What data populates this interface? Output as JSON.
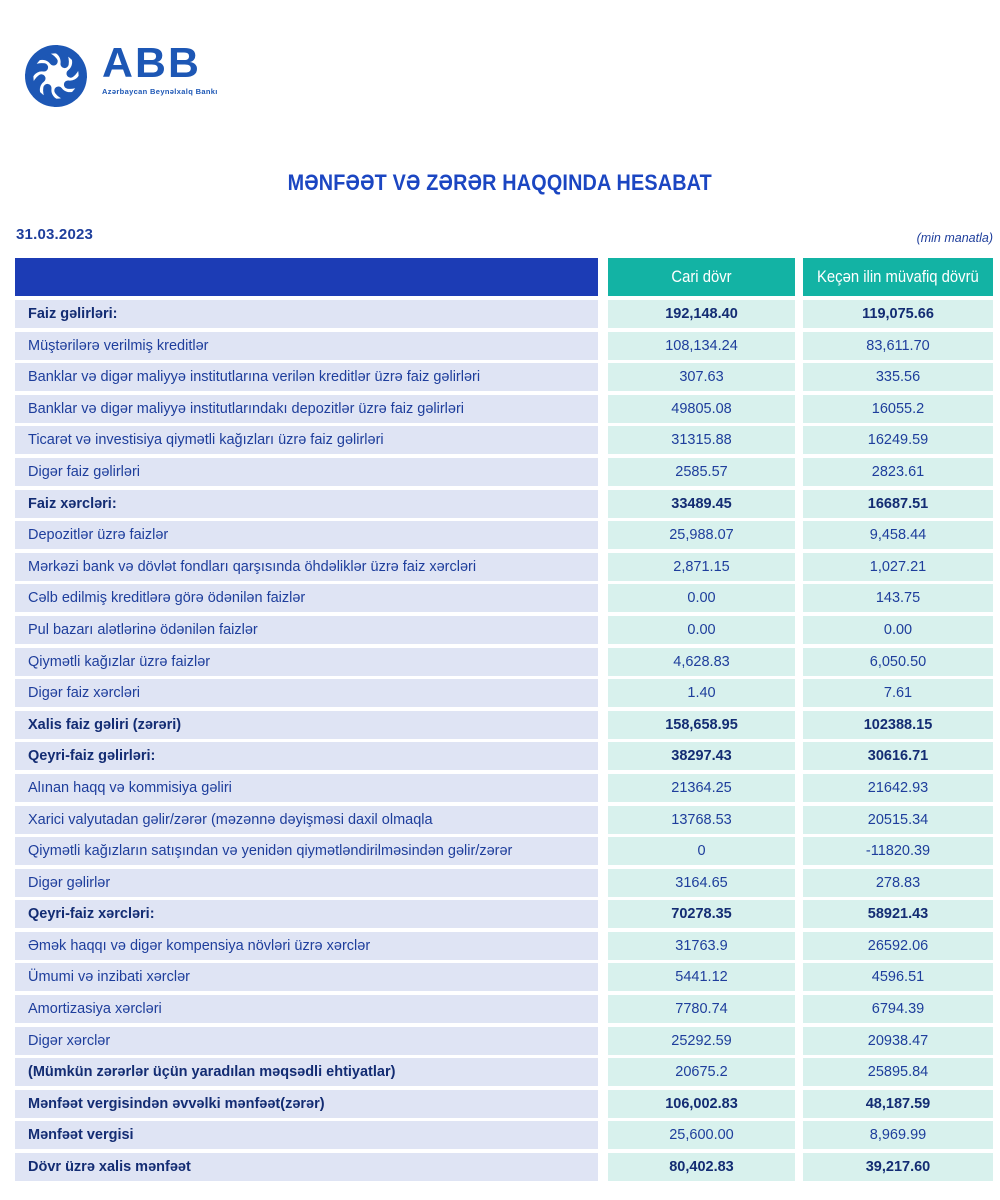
{
  "logo": {
    "brand": "ABB",
    "tagline": "Azərbaycan Beynəlxalq Bankı"
  },
  "title": "MƏNFƏƏT VƏ ZƏRƏR HAQQINDA HESABAT",
  "date": "31.03.2023",
  "unit_note": "(min manatla)",
  "colors": {
    "brand_blue": "#1d57b5",
    "title_blue": "#1b46c2",
    "header_blue": "#1c3cb5",
    "header_teal": "#13b3a4",
    "label_cell_bg": "#dfe4f4",
    "value_cell_bg": "#d8f1ed",
    "text_navy": "#1e3e9c",
    "text_navy_bold": "#132c73"
  },
  "table": {
    "columns": [
      "Cari dövr",
      "Keçən ilin müvafiq dövrü"
    ],
    "rows": [
      {
        "label": "Faiz gəlirləri:",
        "current": "192,148.40",
        "previous": "119,075.66",
        "bold_label": true,
        "bold_values": true
      },
      {
        "label": "Müştərilərə verilmiş kreditlər",
        "current": "108,134.24",
        "previous": "83,611.70",
        "bold_label": false,
        "bold_values": false
      },
      {
        "label": "Banklar və digər maliyyə institutlarına verilən kreditlər üzrə faiz gəlirləri",
        "current": "307.63",
        "previous": "335.56",
        "bold_label": false,
        "bold_values": false
      },
      {
        "label": "Banklar və digər maliyyə institutlarındakı depozitlər üzrə faiz gəlirləri",
        "current": "49805.08",
        "previous": "16055.2",
        "bold_label": false,
        "bold_values": false
      },
      {
        "label": "Ticarət və investisiya qiymətli kağızları üzrə faiz gəlirləri",
        "current": "31315.88",
        "previous": "16249.59",
        "bold_label": false,
        "bold_values": false
      },
      {
        "label": "Digər faiz gəlirləri",
        "current": "2585.57",
        "previous": "2823.61",
        "bold_label": false,
        "bold_values": false
      },
      {
        "label": "Faiz xərcləri:",
        "current": "33489.45",
        "previous": "16687.51",
        "bold_label": true,
        "bold_values": true
      },
      {
        "label": "Depozitlər üzrə faizlər",
        "current": "25,988.07",
        "previous": "9,458.44",
        "bold_label": false,
        "bold_values": false
      },
      {
        "label": "Mərkəzi bank və dövlət fondları qarşısında öhdəliklər üzrə faiz xərcləri",
        "current": "2,871.15",
        "previous": "1,027.21",
        "bold_label": false,
        "bold_values": false
      },
      {
        "label": "Cəlb edilmiş kreditlərə görə ödənilən faizlər",
        "current": "0.00",
        "previous": "143.75",
        "bold_label": false,
        "bold_values": false
      },
      {
        "label": "Pul bazarı alətlərinə ödənilən faizlər",
        "current": "0.00",
        "previous": "0.00",
        "bold_label": false,
        "bold_values": false
      },
      {
        "label": "Qiymətli kağızlar üzrə faizlər",
        "current": "4,628.83",
        "previous": "6,050.50",
        "bold_label": false,
        "bold_values": false
      },
      {
        "label": "Digər faiz xərcləri",
        "current": "1.40",
        "previous": "7.61",
        "bold_label": false,
        "bold_values": false
      },
      {
        "label": "Xalis faiz gəliri (zərəri)",
        "current": "158,658.95",
        "previous": "102388.15",
        "bold_label": true,
        "bold_values": true
      },
      {
        "label": "Qeyri-faiz gəlirləri:",
        "current": "38297.43",
        "previous": "30616.71",
        "bold_label": true,
        "bold_values": true
      },
      {
        "label": "Alınan haqq və kommisiya gəliri",
        "current": "21364.25",
        "previous": "21642.93",
        "bold_label": false,
        "bold_values": false
      },
      {
        "label": "Xarici valyutadan gəlir/zərər (məzənnə dəyişməsi daxil olmaqla",
        "current": "13768.53",
        "previous": "20515.34",
        "bold_label": false,
        "bold_values": false
      },
      {
        "label": "Qiymətli kağızların satışından və yenidən qiymətləndirilməsindən gəlir/zərər",
        "current": "0",
        "previous": "-11820.39",
        "bold_label": false,
        "bold_values": false
      },
      {
        "label": "Digər gəlirlər",
        "current": "3164.65",
        "previous": "278.83",
        "bold_label": false,
        "bold_values": false
      },
      {
        "label": "Qeyri-faiz xərcləri:",
        "current": "70278.35",
        "previous": "58921.43",
        "bold_label": true,
        "bold_values": true
      },
      {
        "label": "Əmək haqqı və digər kompensiya növləri üzrə xərclər",
        "current": "31763.9",
        "previous": "26592.06",
        "bold_label": false,
        "bold_values": false
      },
      {
        "label": "Ümumi və inzibati xərclər",
        "current": "5441.12",
        "previous": "4596.51",
        "bold_label": false,
        "bold_values": false
      },
      {
        "label": "Amortizasiya xərcləri",
        "current": "7780.74",
        "previous": "6794.39",
        "bold_label": false,
        "bold_values": false
      },
      {
        "label": "Digər xərclər",
        "current": "25292.59",
        "previous": "20938.47",
        "bold_label": false,
        "bold_values": false
      },
      {
        "label": "(Mümkün zərərlər üçün yaradılan məqsədli ehtiyatlar)",
        "current": "20675.2",
        "previous": "25895.84",
        "bold_label": true,
        "bold_values": false
      },
      {
        "label": "Mənfəət vergisindən əvvəlki mənfəət(zərər)",
        "current": "106,002.83",
        "previous": "48,187.59",
        "bold_label": true,
        "bold_values": true
      },
      {
        "label": "Mənfəət vergisi",
        "current": "25,600.00",
        "previous": "8,969.99",
        "bold_label": true,
        "bold_values": false
      },
      {
        "label": "Dövr üzrə xalis mənfəət",
        "current": "80,402.83",
        "previous": "39,217.60",
        "bold_label": true,
        "bold_values": true
      }
    ]
  }
}
